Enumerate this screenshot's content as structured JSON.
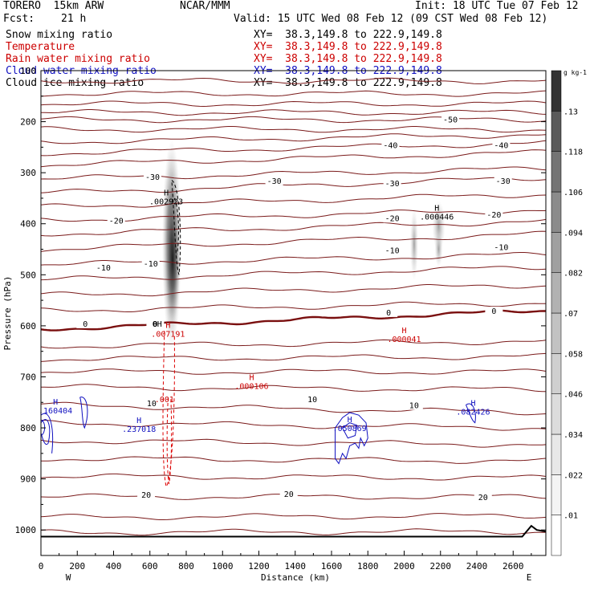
{
  "header": {
    "model": "TORERO  15km ARW",
    "center": "NCAR/MMM",
    "init": "Init: 18 UTC Tue 07 Feb 12",
    "fcst_label": "Fcst:",
    "fcst_value": "21 h",
    "valid": "Valid: 15 UTC Wed 08 Feb 12 (09 CST Wed 08 Feb 12)"
  },
  "fields": [
    {
      "name": "Snow mixing ratio",
      "xy": "XY=  38.3,149.8 to 222.9,149.8",
      "color": "#000000"
    },
    {
      "name": "Temperature",
      "xy": "XY=  38.3,149.8 to 222.9,149.8",
      "color": "#cc0000"
    },
    {
      "name": "Rain water mixing ratio",
      "xy": "XY=  38.3,149.8 to 222.9,149.8",
      "color": "#cc0000"
    },
    {
      "name": "Cloud water mixing ratio",
      "xy": "XY=  38.3,149.8 to 222.9,149.8",
      "color": "#1010c0"
    },
    {
      "name": "Cloud ice mixing ratio",
      "xy": "XY=  38.3,149.8 to 222.9,149.8",
      "color": "#000000"
    }
  ],
  "chart_data": {
    "type": "cross-section",
    "xlabel": "Distance (km)",
    "ylabel": "Pressure (hPa)",
    "xlim": [
      0,
      2780
    ],
    "ylim": [
      1050,
      100
    ],
    "x_ticks": [
      0,
      200,
      400,
      600,
      800,
      1000,
      1200,
      1400,
      1600,
      1800,
      2000,
      2200,
      2400,
      2600
    ],
    "y_ticks": [
      100,
      200,
      300,
      400,
      500,
      600,
      700,
      800,
      900,
      1000
    ],
    "x_end_labels": {
      "left": "W",
      "right": "E"
    },
    "colorbar": {
      "unit": "g kg-1",
      "levels": [
        0.01,
        0.022,
        0.034,
        0.046,
        0.058,
        0.07,
        0.082,
        0.094,
        0.106,
        0.118,
        0.13
      ],
      "labels": [
        ".01",
        ".022",
        ".034",
        ".046",
        ".058",
        ".07",
        ".082",
        ".094",
        ".106",
        ".118",
        ".13"
      ]
    },
    "temperature_labels": [
      {
        "x": 2250,
        "p": 200,
        "value": -50
      },
      {
        "x": 1920,
        "p": 250,
        "value": -40
      },
      {
        "x": 2530,
        "p": 250,
        "value": -40
      },
      {
        "x": 1280,
        "p": 320,
        "value": -30
      },
      {
        "x": 1930,
        "p": 325,
        "value": -30
      },
      {
        "x": 2540,
        "p": 320,
        "value": -30
      },
      {
        "x": 610,
        "p": 312,
        "value": -30
      },
      {
        "x": 410,
        "p": 398,
        "value": -20
      },
      {
        "x": 1930,
        "p": 393,
        "value": -20
      },
      {
        "x": 2490,
        "p": 386,
        "value": -20
      },
      {
        "x": 340,
        "p": 490,
        "value": -10
      },
      {
        "x": 600,
        "p": 482,
        "value": -10
      },
      {
        "x": 1930,
        "p": 456,
        "value": -10
      },
      {
        "x": 2530,
        "p": 450,
        "value": -10
      },
      {
        "x": 240,
        "p": 600,
        "value": 0
      },
      {
        "x": 625,
        "p": 600,
        "value": 0
      },
      {
        "x": 1910,
        "p": 578,
        "value": 0
      },
      {
        "x": 2490,
        "p": 575,
        "value": 0
      },
      {
        "x": 605,
        "p": 756,
        "value": 10
      },
      {
        "x": 1490,
        "p": 748,
        "value": 10
      },
      {
        "x": 2050,
        "p": 760,
        "value": 10
      },
      {
        "x": 575,
        "p": 935,
        "value": 20
      },
      {
        "x": 1360,
        "p": 934,
        "value": 20
      },
      {
        "x": 2430,
        "p": 940,
        "value": 20
      }
    ],
    "maxima": [
      {
        "field": "snow",
        "x": 690,
        "p": 360,
        "label": "H",
        "value": ".002923"
      },
      {
        "field": "snow",
        "x": 2180,
        "p": 390,
        "label": "H",
        "value": ".000446"
      },
      {
        "field": "rain",
        "x": 700,
        "p": 620,
        "label": "H",
        "value": ".007191"
      },
      {
        "field": "rain",
        "x": 1160,
        "p": 722,
        "label": "H",
        "value": ".000106"
      },
      {
        "field": "rain",
        "x": 2000,
        "p": 630,
        "label": "H",
        "value": ".000041"
      },
      {
        "field": "rain",
        "x": 680,
        "p": 748,
        "label": "",
        "value": ".001"
      },
      {
        "field": "cloud_water",
        "x": 80,
        "p": 770,
        "label": "H",
        "value": ".160404"
      },
      {
        "field": "cloud_water",
        "x": 540,
        "p": 806,
        "label": "H",
        "value": ".237018"
      },
      {
        "field": "cloud_water",
        "x": 1700,
        "p": 805,
        "label": "H",
        "value": ".050869"
      },
      {
        "field": "cloud_water",
        "x": 2380,
        "p": 772,
        "label": "H",
        "value": ".082426"
      }
    ],
    "zero_line_label": "0H"
  }
}
